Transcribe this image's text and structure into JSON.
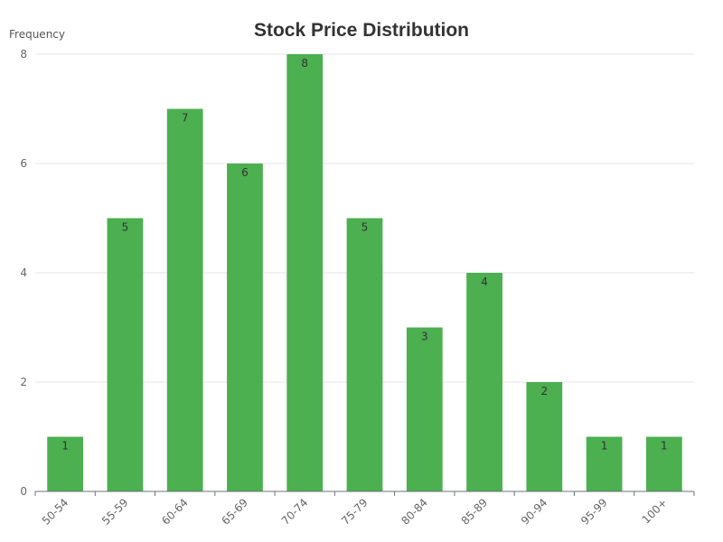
{
  "chart_data": {
    "type": "bar",
    "title": "Stock Price Distribution",
    "xlabel": "",
    "ylabel": "Frequency",
    "categories": [
      "50-54",
      "55-59",
      "60-64",
      "65-69",
      "70-74",
      "75-79",
      "80-84",
      "85-89",
      "90-94",
      "95-99",
      "100+"
    ],
    "values": [
      1,
      5,
      7,
      6,
      8,
      5,
      3,
      4,
      2,
      1,
      1
    ],
    "ylim": [
      0,
      8
    ],
    "yticks": [
      0,
      2,
      4,
      6,
      8
    ],
    "grid": true,
    "legend": "none",
    "bar_color": "#4caf50"
  }
}
